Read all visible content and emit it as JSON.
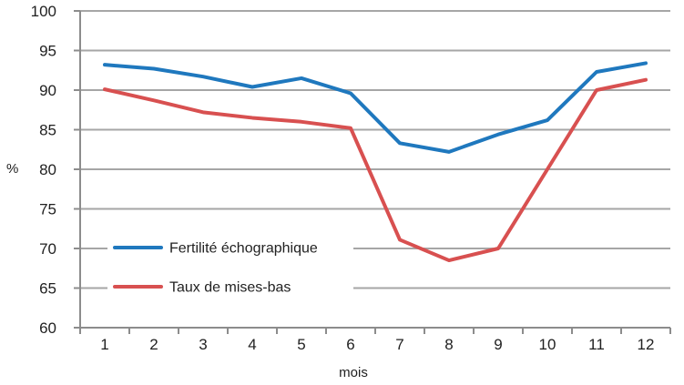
{
  "chart_data": {
    "type": "line",
    "title": "",
    "xlabel": "mois",
    "ylabel": "%",
    "ylim": [
      60,
      100
    ],
    "ytick_step": 5,
    "grid": true,
    "legend_position": "inside-lower-left",
    "categories": [
      "1",
      "2",
      "3",
      "4",
      "5",
      "6",
      "7",
      "8",
      "9",
      "10",
      "11",
      "12"
    ],
    "series": [
      {
        "name": "Fertilité échographique",
        "color": "#1F78BE",
        "values": [
          93.2,
          92.7,
          91.7,
          90.4,
          91.5,
          89.6,
          83.3,
          82.2,
          84.4,
          86.2,
          92.3,
          93.4
        ]
      },
      {
        "name": "Taux de mises-bas",
        "color": "#D85050",
        "values": [
          90.1,
          88.7,
          87.2,
          86.5,
          86.0,
          85.2,
          71.1,
          68.5,
          70.0,
          80.0,
          90.0,
          91.3
        ]
      }
    ]
  },
  "colors": {
    "background": "#FFFFFF",
    "gridline": "#A6A6A6",
    "axis": "#8C8C8C",
    "tick_text": "#212121",
    "legend_box": "#FFFFFF"
  }
}
